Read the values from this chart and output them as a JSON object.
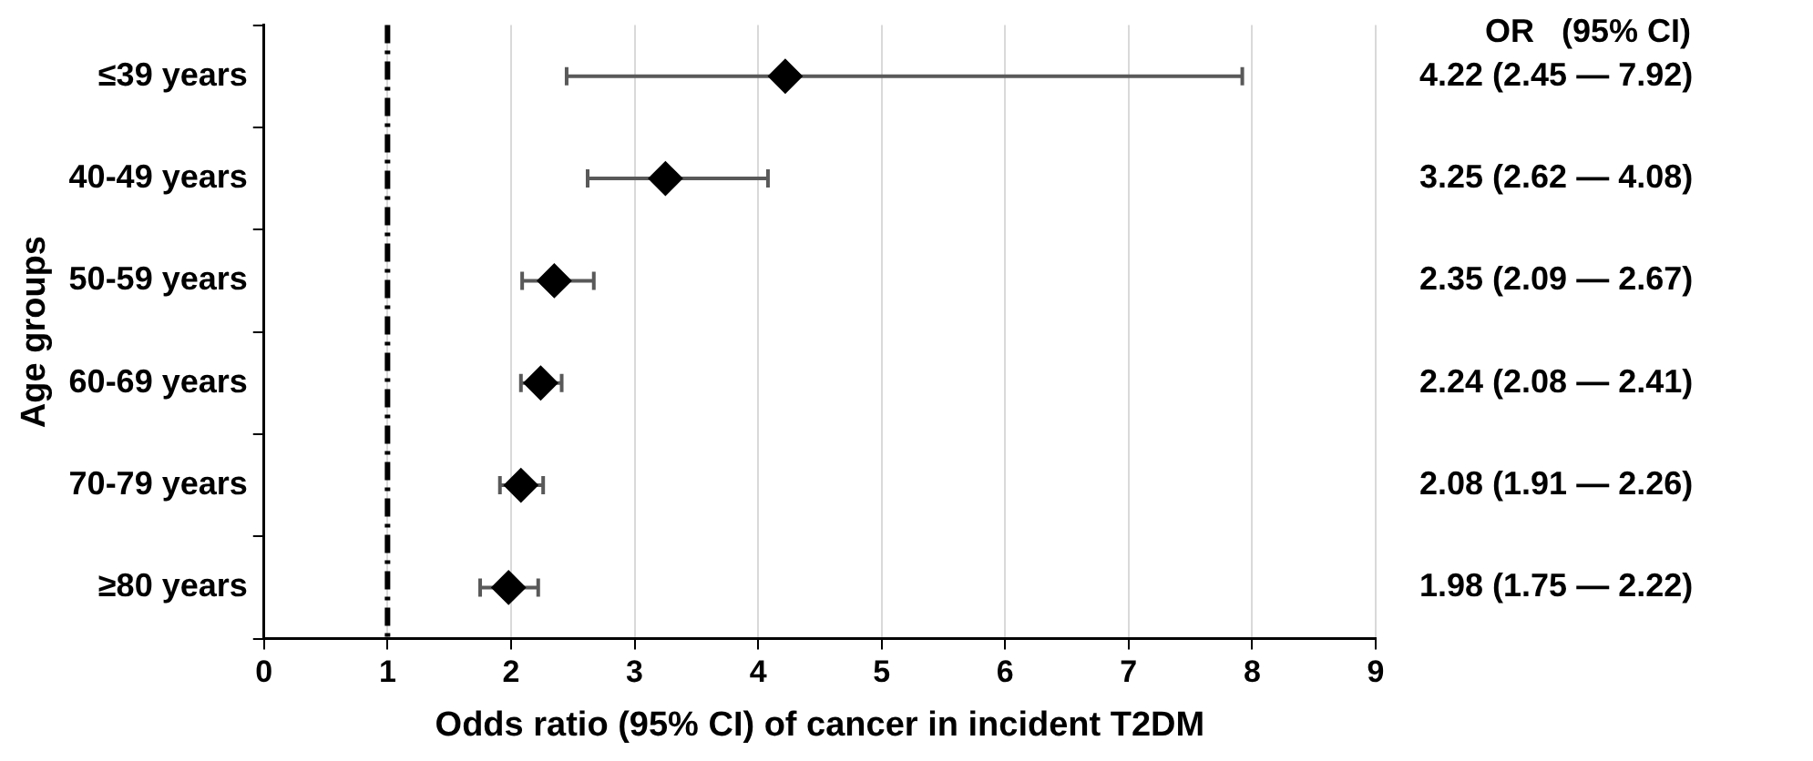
{
  "chart_data": {
    "type": "scatter",
    "orientation": "horizontal",
    "categories": [
      "≤39 years",
      "40-49 years",
      "50-59 years",
      "60-69 years",
      "70-79 years",
      "≥80 years"
    ],
    "values": [
      4.22,
      3.25,
      2.35,
      2.24,
      2.08,
      1.98
    ],
    "errors": [
      [
        2.45,
        7.92
      ],
      [
        2.62,
        4.08
      ],
      [
        2.09,
        2.67
      ],
      [
        2.08,
        2.41
      ],
      [
        1.91,
        2.26
      ],
      [
        1.75,
        2.22
      ]
    ],
    "value_labels": [
      "4.22 (2.45 — 7.92)",
      "3.25 (2.62 — 4.08)",
      "2.35 (2.09 — 2.67)",
      "2.24 (2.08 — 2.41)",
      "2.08 (1.91 — 2.26)",
      "1.98 (1.75 — 2.22)"
    ],
    "color": "#000000",
    "marker": "diamond",
    "xlim": [
      0,
      9
    ],
    "xticks": [
      0,
      1,
      2,
      3,
      4,
      5,
      6,
      7,
      8,
      9
    ],
    "grid": "x",
    "xlabel": "Odds ratio (95% CI) of cancer in incident T2DM",
    "ylabel": "Age groups",
    "ref_lines": [
      {
        "axis": "x",
        "value": 1,
        "color": "#000000",
        "line_style": "dashed"
      }
    ],
    "annotations": [
      "OR   (95% CI)"
    ]
  }
}
